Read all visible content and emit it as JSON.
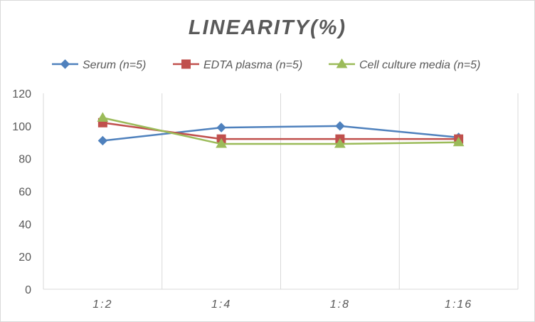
{
  "chart_data": {
    "type": "line",
    "title": "LINEARITY(%)",
    "xlabel": "",
    "ylabel": "",
    "categories": [
      "1:2",
      "1:4",
      "1:8",
      "1:16"
    ],
    "ylim": [
      0,
      120
    ],
    "yticks": [
      0,
      20,
      40,
      60,
      80,
      100,
      120
    ],
    "grid": "vertical",
    "legend_position": "top",
    "series": [
      {
        "name": "Serum (n=5)",
        "values": [
          91,
          99,
          100,
          93
        ],
        "color": "#4F81BD",
        "marker": "diamond"
      },
      {
        "name": "EDTA plasma (n=5)",
        "values": [
          102,
          92,
          92,
          92
        ],
        "color": "#C0504D",
        "marker": "square"
      },
      {
        "name": "Cell culture media (n=5)",
        "values": [
          105,
          89,
          89,
          90
        ],
        "color": "#9BBB59",
        "marker": "triangle"
      }
    ]
  }
}
